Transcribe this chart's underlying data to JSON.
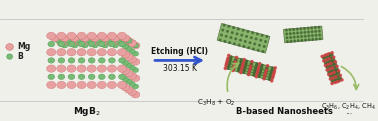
{
  "bg_color": "#f0f0ea",
  "line_color": "#bbbbbb",
  "mg_color": "#e8a0a0",
  "mg_edge": "#cc7777",
  "b_color": "#77bb77",
  "b_edge": "#449944",
  "arrow_color": "#3355cc",
  "nanosheet_green": "#77aa55",
  "nanosheet_dark": "#446633",
  "nanosheet_edge_dot": "#cc4444",
  "curve_arrow_color": "#99bb66",
  "title_mgb2": "MgB$_2$",
  "title_nanosheets": "B-based Nanosheets",
  "label_mg": "Mg",
  "label_b": "B",
  "etching_line1": "Etching (HCl)",
  "etching_line2": "303.15 K",
  "reactants": "C$_3$H$_8$ + O$_2$",
  "products": "C$_3$H$_6$, C$_2$H$_4$, CH$_4$",
  "products2": "...",
  "figsize": [
    3.78,
    1.21
  ],
  "dpi": 100
}
